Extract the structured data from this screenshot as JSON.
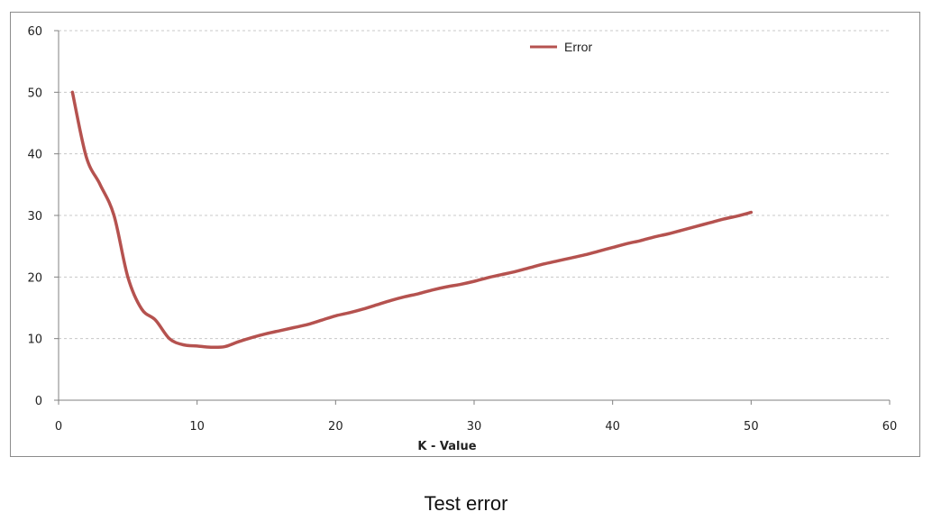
{
  "caption": "Test error",
  "chart_data": {
    "type": "line",
    "title": "",
    "xlabel": "K - Value",
    "ylabel": "",
    "xlim": [
      0,
      60
    ],
    "ylim": [
      0,
      60
    ],
    "xticks": [
      0,
      10,
      20,
      30,
      40,
      50,
      60
    ],
    "yticks": [
      0,
      10,
      20,
      30,
      40,
      50,
      60
    ],
    "grid": true,
    "legend_position": "top-center",
    "series": [
      {
        "name": "Error",
        "color": "#b5524f",
        "x": [
          1,
          2,
          3,
          4,
          5,
          6,
          7,
          8,
          9,
          10,
          11,
          12,
          13,
          14,
          15,
          16,
          17,
          18,
          19,
          20,
          21,
          22,
          23,
          24,
          25,
          26,
          27,
          28,
          29,
          30,
          31,
          32,
          33,
          34,
          35,
          36,
          37,
          38,
          39,
          40,
          41,
          42,
          43,
          44,
          45,
          46,
          47,
          48,
          49,
          50
        ],
        "y": [
          50,
          39.5,
          35,
          30,
          20,
          14.8,
          13,
          10,
          9,
          8.8,
          8.6,
          8.7,
          9.5,
          10.2,
          10.8,
          11.3,
          11.8,
          12.3,
          13,
          13.7,
          14.2,
          14.8,
          15.5,
          16.2,
          16.8,
          17.3,
          17.9,
          18.4,
          18.8,
          19.3,
          19.9,
          20.4,
          20.9,
          21.5,
          22.1,
          22.6,
          23.1,
          23.6,
          24.2,
          24.8,
          25.4,
          25.9,
          26.5,
          27,
          27.6,
          28.2,
          28.8,
          29.4,
          29.9,
          30.5
        ]
      }
    ]
  }
}
